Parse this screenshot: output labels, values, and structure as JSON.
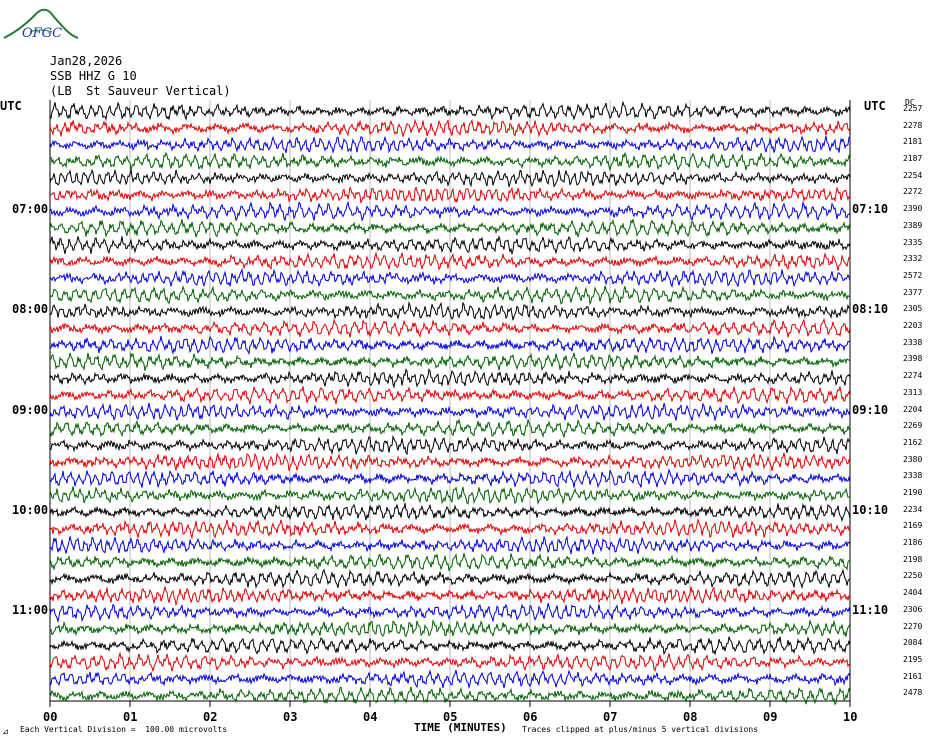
{
  "logo_text": "OFGC",
  "header": {
    "date": "Jan28,2026",
    "station": "SSB HHZ G 10",
    "name": "(LB  St Sauveur Vertical)"
  },
  "utc_left": "UTC",
  "utc_right": "UTC",
  "dc_label": "DC",
  "footer": {
    "left_mark": "⊿",
    "scale": "Each Vertical Division =  100.00 microvolts",
    "clip": "Traces clipped at plus/minus 5 vertical divisions"
  },
  "colors": {
    "cycle": [
      "#000000",
      "#e00000",
      "#0000e0",
      "#006000"
    ],
    "grid": "#888888",
    "logo": "#2a7a3a"
  },
  "chart_data": {
    "type": "line",
    "title": "",
    "xlabel": "TIME (MINUTES)",
    "x_ticks": [
      "00",
      "01",
      "02",
      "03",
      "04",
      "05",
      "06",
      "07",
      "08",
      "09",
      "10"
    ],
    "xlim": [
      0,
      10
    ],
    "grid": true,
    "rows_per_hour": 6,
    "left_hour_labels": [
      "07:00",
      "08:00",
      "09:00",
      "10:00",
      "11:00"
    ],
    "right_hour_labels": [
      "07:10",
      "08:10",
      "09:10",
      "10:10",
      "11:10"
    ],
    "dc_offsets": [
      2257,
      2278,
      2181,
      2187,
      2254,
      2272,
      2390,
      2389,
      2335,
      2332,
      2572,
      2377,
      2305,
      2203,
      2338,
      2398,
      2274,
      2313,
      2204,
      2269,
      2162,
      2380,
      2338,
      2190,
      2234,
      2169,
      2186,
      2198,
      2250,
      2404,
      2306,
      2270,
      2084,
      2195,
      2161,
      2478
    ]
  }
}
